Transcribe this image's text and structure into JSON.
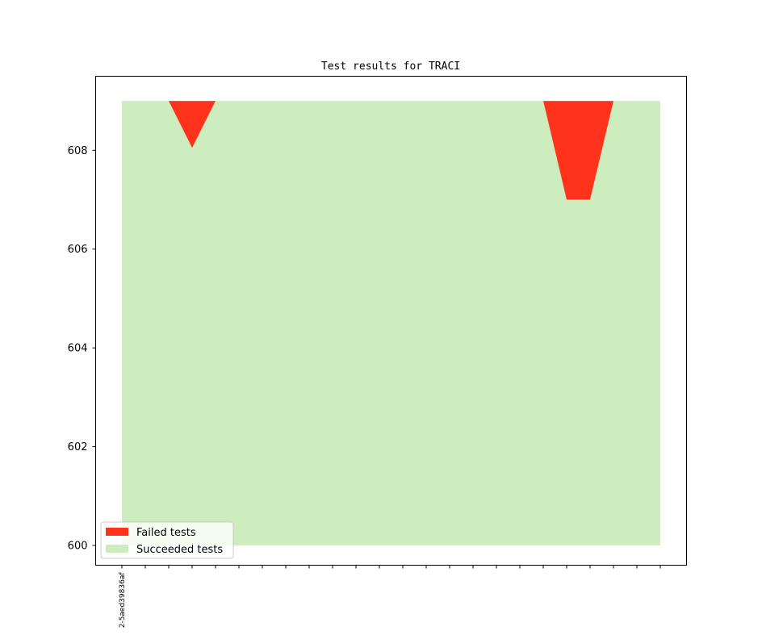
{
  "chart_data": {
    "type": "area",
    "title": "Test results for TRACI",
    "x_count": 24,
    "x_tick_labels": [
      "2-5aed39836af"
    ],
    "y_ticks": [
      600,
      602,
      604,
      606,
      608
    ],
    "ylim": [
      599.6,
      609.5
    ],
    "grid": false,
    "legend_position": "lower-left",
    "series": [
      {
        "name": "Failed tests",
        "color": "#ff331c",
        "lower": [
          609,
          609,
          609,
          608.05,
          609,
          609,
          609,
          609,
          609,
          609,
          609,
          609,
          609,
          609,
          609,
          609,
          609,
          609,
          609,
          607,
          607,
          609,
          609,
          609
        ],
        "upper": [
          609,
          609,
          609,
          609,
          609,
          609,
          609,
          609,
          609,
          609,
          609,
          609,
          609,
          609,
          609,
          609,
          609,
          609,
          609,
          609,
          609,
          609,
          609,
          609
        ]
      },
      {
        "name": "Succeeded tests",
        "color": "#ceedbf",
        "lower": [
          600,
          600,
          600,
          600,
          600,
          600,
          600,
          600,
          600,
          600,
          600,
          600,
          600,
          600,
          600,
          600,
          600,
          600,
          600,
          600,
          600,
          600,
          600,
          600
        ],
        "upper": [
          609,
          609,
          609,
          608.05,
          609,
          609,
          609,
          609,
          609,
          609,
          609,
          609,
          609,
          609,
          609,
          609,
          609,
          609,
          609,
          607,
          607,
          609,
          609,
          609
        ]
      }
    ]
  }
}
